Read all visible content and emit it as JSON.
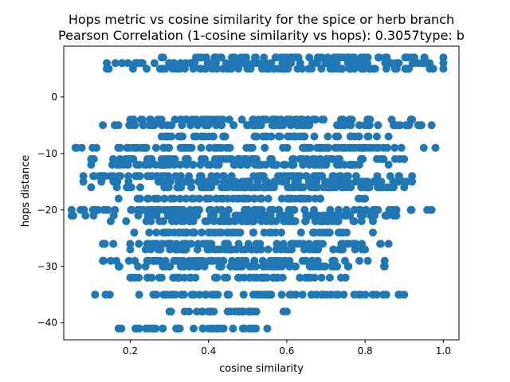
{
  "chart_data": {
    "type": "scatter",
    "title": "Hops metric vs cosine similarity for the spice or herb branch",
    "subtitle": "Pearson Correlation (1-cosine similarity vs hops): 0.3057type: b",
    "xlabel": "cosine similarity",
    "ylabel": "hops distance",
    "xlim": [
      0.03,
      1.04
    ],
    "ylim": [
      -43,
      9
    ],
    "xticks": [
      "0.2",
      "0.4",
      "0.6",
      "0.8",
      "1.0"
    ],
    "yticks": [
      "0",
      "−10",
      "−20",
      "−30",
      "−40"
    ],
    "grid": false,
    "legend": "none",
    "point_color": "#1f77b4",
    "bands": [
      {
        "y": 7,
        "x_range": [
          0.28,
          1.0
        ]
      },
      {
        "y": 6,
        "x_range": [
          0.14,
          1.0
        ]
      },
      {
        "y": 5,
        "x_range": [
          0.14,
          1.0
        ]
      },
      {
        "y": -4,
        "x_range": [
          0.2,
          0.92
        ]
      },
      {
        "y": -5,
        "x_range": [
          0.13,
          0.97
        ]
      },
      {
        "y": -7,
        "x_range": [
          0.28,
          0.86
        ]
      },
      {
        "y": -9,
        "x_range": [
          0.06,
          0.98
        ]
      },
      {
        "y": -11,
        "x_range": [
          0.1,
          0.9
        ]
      },
      {
        "y": -12,
        "x_range": [
          0.1,
          0.86
        ]
      },
      {
        "y": -14,
        "x_range": [
          0.08,
          0.92
        ]
      },
      {
        "y": -15,
        "x_range": [
          0.08,
          0.92
        ]
      },
      {
        "y": -16,
        "x_range": [
          0.1,
          0.9
        ]
      },
      {
        "y": -18,
        "x_range": [
          0.17,
          0.8
        ]
      },
      {
        "y": -20,
        "x_range": [
          0.05,
          0.97
        ]
      },
      {
        "y": -21,
        "x_range": [
          0.05,
          0.88
        ]
      },
      {
        "y": -22,
        "x_range": [
          0.15,
          0.82
        ]
      },
      {
        "y": -24,
        "x_range": [
          0.21,
          0.82
        ]
      },
      {
        "y": -26,
        "x_range": [
          0.13,
          0.86
        ]
      },
      {
        "y": -27,
        "x_range": [
          0.2,
          0.8
        ]
      },
      {
        "y": -29,
        "x_range": [
          0.13,
          0.85
        ]
      },
      {
        "y": -30,
        "x_range": [
          0.17,
          0.85
        ]
      },
      {
        "y": -32,
        "x_range": [
          0.2,
          0.75
        ]
      },
      {
        "y": -35,
        "x_range": [
          0.11,
          0.9
        ]
      },
      {
        "y": -38,
        "x_range": [
          0.3,
          0.6
        ]
      },
      {
        "y": -41,
        "x_range": [
          0.17,
          0.55
        ]
      }
    ]
  }
}
